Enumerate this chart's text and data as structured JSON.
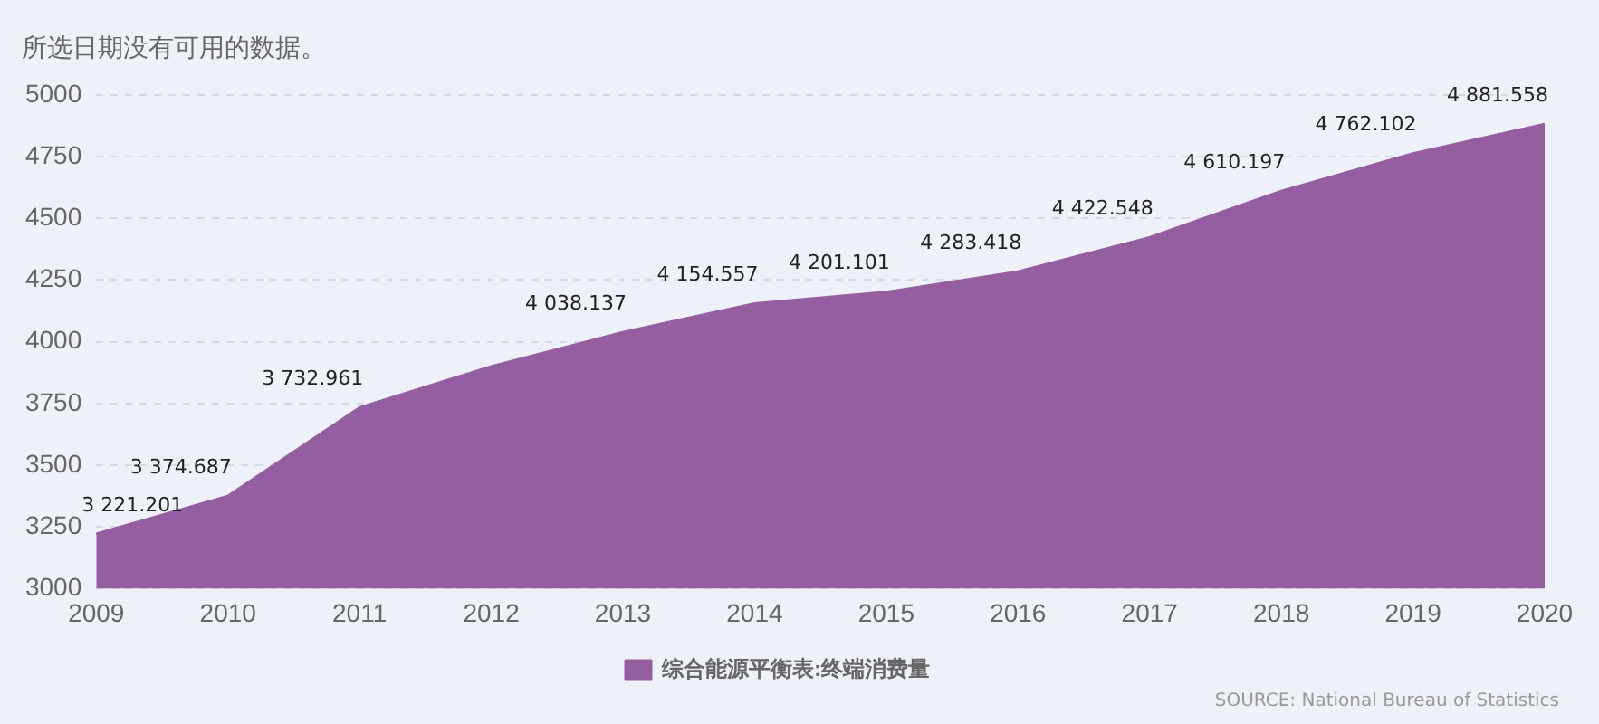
{
  "chart_data": {
    "type": "area",
    "categories": [
      "2009",
      "2010",
      "2011",
      "2012",
      "2013",
      "2014",
      "2015",
      "2016",
      "2017",
      "2018",
      "2019",
      "2020"
    ],
    "series": [
      {
        "name": "综合能源平衡表:终端消费量",
        "color": "#945ea0",
        "values": [
          3221.201,
          3374.687,
          3732.961,
          3900,
          4038.137,
          4154.557,
          4201.101,
          4283.418,
          4422.548,
          4610.197,
          4762.102,
          4881.558
        ],
        "value_labels": [
          "3 221.201",
          "3 374.687",
          "3 732.961",
          null,
          "4 038.137",
          "4 154.557",
          "4 201.101",
          "4 283.418",
          "4 422.548",
          "4 610.197",
          "4 762.102",
          "4 881.558"
        ]
      }
    ],
    "ylim": [
      3000,
      5000
    ],
    "yticks": [
      3000,
      3250,
      3500,
      3750,
      4000,
      4250,
      4500,
      4750,
      5000
    ],
    "grid": "y",
    "legend": "bottom",
    "annotations": [
      "所选日期没有可用的数据。",
      "SOURCE: National Bureau of Statistics"
    ]
  }
}
